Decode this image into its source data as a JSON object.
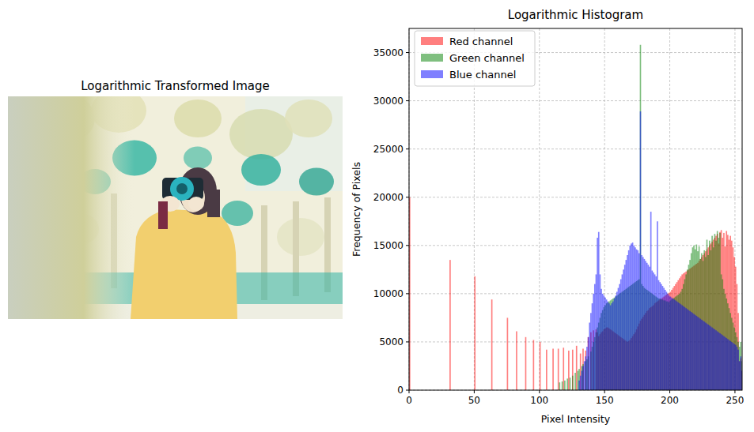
{
  "image": {
    "title": "Logarithmic Transformed Image"
  },
  "chart_data": {
    "type": "histogram",
    "title": "Logarithmic Histogram",
    "x_label": "Pixel Intensity",
    "y_label": "Frequency of Pixels",
    "xlim": [
      0,
      255.5
    ],
    "ylim": [
      0,
      37500
    ],
    "xticks": [
      0,
      50,
      100,
      150,
      200,
      250
    ],
    "yticks": [
      0,
      5000,
      10000,
      15000,
      20000,
      25000,
      30000,
      35000
    ],
    "grid": true,
    "legend": "upper left",
    "bins": [
      0,
      1,
      31,
      32,
      50,
      51,
      63,
      64,
      75,
      76,
      82,
      83,
      89,
      90,
      95,
      96,
      100,
      101,
      105,
      106,
      110,
      111,
      114,
      115,
      116,
      117,
      118,
      119,
      120,
      121,
      122,
      123,
      124,
      125,
      126,
      127,
      128,
      129,
      130,
      131,
      132,
      133,
      134,
      135,
      136,
      137,
      138,
      139,
      140,
      141,
      142,
      143,
      144,
      145,
      146,
      147,
      148,
      149,
      150,
      151,
      152,
      153,
      154,
      155,
      156,
      157,
      158,
      159,
      160,
      161,
      162,
      163,
      164,
      165,
      166,
      167,
      168,
      169,
      170,
      171,
      172,
      173,
      174,
      175,
      176,
      177,
      178,
      179,
      180,
      181,
      182,
      183,
      184,
      185,
      186,
      187,
      188,
      189,
      190,
      191,
      192,
      193,
      194,
      195,
      196,
      197,
      198,
      199,
      200,
      201,
      202,
      203,
      204,
      205,
      206,
      207,
      208,
      209,
      210,
      211,
      212,
      213,
      214,
      215,
      216,
      217,
      218,
      219,
      220,
      221,
      222,
      223,
      224,
      225,
      226,
      227,
      228,
      229,
      230,
      231,
      232,
      233,
      234,
      235,
      236,
      237,
      238,
      239,
      240,
      241,
      242,
      243,
      244,
      245,
      246,
      247,
      248,
      249,
      250,
      251,
      252,
      253,
      254,
      255,
      256
    ],
    "series": [
      {
        "name": "Red channel",
        "color": "red",
        "values": [
          20000,
          0,
          13500,
          0,
          11800,
          0,
          9400,
          0,
          7500,
          0,
          6100,
          0,
          5500,
          0,
          5200,
          0,
          5000,
          0,
          4200,
          0,
          4300,
          0,
          4300,
          0,
          0,
          0,
          4400,
          0,
          0,
          0,
          4100,
          0,
          0,
          4200,
          0,
          0,
          4600,
          0,
          0,
          3800,
          0,
          4300,
          0,
          4100,
          0,
          5500,
          0,
          6000,
          0,
          6200,
          0,
          6300,
          6000,
          5600,
          5800,
          6000,
          6100,
          6300,
          6400,
          6500,
          6500,
          6400,
          6300,
          6200,
          6100,
          6000,
          5900,
          5800,
          5700,
          5600,
          5500,
          5400,
          5300,
          5200,
          5100,
          5000,
          5100,
          5200,
          5400,
          5600,
          5800,
          6000,
          6300,
          6600,
          6900,
          7200,
          7400,
          7600,
          7800,
          8000,
          8200,
          8300,
          8500,
          8600,
          8700,
          8800,
          9000,
          9100,
          9200,
          9300,
          9400,
          9500,
          9600,
          9700,
          9800,
          9900,
          10000,
          10100,
          10200,
          10400,
          10600,
          10800,
          11000,
          11200,
          11400,
          11600,
          11800,
          12000,
          12100,
          12200,
          12300,
          12400,
          12500,
          12600,
          12700,
          12800,
          12900,
          13000,
          13100,
          13200,
          13400,
          13600,
          13800,
          14000,
          14200,
          14400,
          14600,
          14800,
          15000,
          15200,
          15400,
          15600,
          15800,
          16000,
          16200,
          15200,
          16400,
          16600,
          15800,
          16300,
          14900,
          16500,
          16100,
          15600,
          16000,
          15500,
          14800,
          13800,
          12800,
          11000,
          8000,
          3000,
          3300,
          2000
        ]
      },
      {
        "name": "Green channel",
        "color": "green",
        "values": [
          0,
          0,
          0,
          0,
          0,
          0,
          0,
          0,
          0,
          0,
          0,
          0,
          0,
          0,
          0,
          0,
          0,
          0,
          0,
          0,
          0,
          0,
          0,
          800,
          0,
          900,
          0,
          1000,
          0,
          1200,
          0,
          1300,
          0,
          1500,
          0,
          1800,
          0,
          2000,
          2200,
          0,
          2500,
          2700,
          0,
          3000,
          3200,
          3500,
          0,
          4000,
          4500,
          5000,
          5500,
          6000,
          6500,
          7000,
          7500,
          8000,
          8300,
          8600,
          8800,
          9000,
          9100,
          9200,
          9300,
          9400,
          9500,
          9600,
          9700,
          9800,
          9900,
          10000,
          10100,
          10200,
          10300,
          10400,
          10500,
          10600,
          10700,
          10800,
          10900,
          11000,
          11100,
          11200,
          11300,
          11400,
          11500,
          35800,
          11000,
          10800,
          10600,
          10500,
          10400,
          10300,
          10200,
          10100,
          10000,
          9900,
          9800,
          9700,
          9600,
          9500,
          9500,
          9400,
          9400,
          9300,
          9300,
          9200,
          9200,
          9100,
          9300,
          9400,
          9500,
          9600,
          9700,
          9800,
          9900,
          10000,
          10200,
          10500,
          11000,
          11500,
          12000,
          12500,
          13000,
          13500,
          14200,
          14800,
          15000,
          14600,
          15100,
          14400,
          14900,
          13600,
          14200,
          13400,
          14500,
          13800,
          15600,
          14000,
          15500,
          14500,
          16000,
          14800,
          16200,
          15500,
          16500,
          15800,
          16300,
          12000,
          11500,
          10500,
          10000,
          9500,
          9000,
          8500,
          8000,
          7500,
          7000,
          6500,
          6000,
          5500,
          5000,
          4500,
          5000,
          3000
        ]
      },
      {
        "name": "Blue channel",
        "color": "blue",
        "values": [
          0,
          0,
          0,
          0,
          0,
          0,
          0,
          0,
          0,
          0,
          0,
          0,
          0,
          0,
          0,
          0,
          0,
          0,
          0,
          0,
          0,
          0,
          0,
          0,
          0,
          0,
          0,
          0,
          0,
          0,
          0,
          0,
          0,
          0,
          0,
          0,
          0,
          0,
          1000,
          1500,
          2000,
          2500,
          3000,
          3500,
          4500,
          5500,
          7000,
          8000,
          9000,
          10000,
          11000,
          12000,
          15800,
          16400,
          12000,
          10500,
          10000,
          9800,
          9600,
          9400,
          9200,
          9000,
          8800,
          9000,
          9200,
          9500,
          9800,
          10200,
          10600,
          11000,
          11500,
          12000,
          12500,
          13000,
          13500,
          14000,
          14500,
          15000,
          15200,
          15300,
          15000,
          14800,
          14600,
          14500,
          14200,
          28900,
          14000,
          13800,
          13600,
          13400,
          13200,
          13000,
          12800,
          18500,
          12400,
          12200,
          12000,
          11800,
          17500,
          11400,
          11200,
          11000,
          10800,
          10600,
          10400,
          10200,
          10000,
          9800,
          9700,
          9600,
          9500,
          9400,
          9300,
          9200,
          9100,
          9000,
          8900,
          8800,
          8700,
          8600,
          8500,
          8400,
          8300,
          8200,
          8100,
          8000,
          7900,
          7800,
          7700,
          7600,
          7500,
          7400,
          7300,
          7200,
          7100,
          7000,
          6900,
          6800,
          6700,
          6600,
          6500,
          6400,
          6300,
          6200,
          6100,
          6000,
          5900,
          5800,
          5700,
          5600,
          5500,
          5400,
          5300,
          5200,
          5100,
          5000,
          4900,
          4800,
          4700,
          4500,
          4200,
          3000,
          3500,
          2000
        ]
      }
    ]
  }
}
